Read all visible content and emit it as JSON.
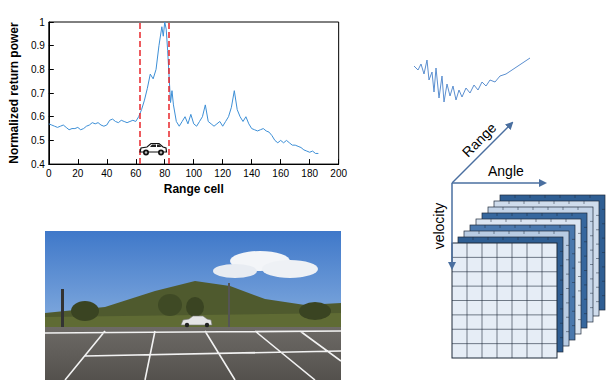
{
  "chart_data": {
    "type": "line",
    "xlabel": "Range cell",
    "ylabel": "Normalized return power",
    "x": [
      0,
      2,
      4,
      6,
      8,
      10,
      12,
      14,
      16,
      18,
      20,
      22,
      24,
      26,
      28,
      30,
      32,
      34,
      36,
      38,
      40,
      42,
      44,
      46,
      48,
      50,
      52,
      54,
      56,
      58,
      60,
      62,
      64,
      66,
      68,
      70,
      72,
      74,
      76,
      78,
      79,
      80,
      81,
      82,
      84,
      85,
      86,
      88,
      90,
      92,
      94,
      96,
      98,
      100,
      102,
      104,
      106,
      108,
      110,
      112,
      114,
      116,
      118,
      120,
      122,
      124,
      126,
      128,
      130,
      132,
      134,
      136,
      138,
      140,
      142,
      144,
      146,
      148,
      150,
      152,
      154,
      156,
      158,
      160,
      162,
      164,
      166,
      168,
      170,
      172,
      174,
      176,
      178,
      180,
      182,
      184,
      186
    ],
    "values": [
      0.57,
      0.565,
      0.56,
      0.555,
      0.56,
      0.565,
      0.555,
      0.545,
      0.55,
      0.55,
      0.555,
      0.545,
      0.55,
      0.56,
      0.565,
      0.575,
      0.57,
      0.575,
      0.565,
      0.56,
      0.565,
      0.585,
      0.59,
      0.58,
      0.575,
      0.585,
      0.58,
      0.575,
      0.58,
      0.585,
      0.58,
      0.6,
      0.63,
      0.67,
      0.72,
      0.78,
      0.76,
      0.8,
      0.9,
      0.98,
      0.94,
      1.0,
      0.97,
      0.88,
      0.66,
      0.71,
      0.65,
      0.58,
      0.56,
      0.58,
      0.6,
      0.57,
      0.61,
      0.57,
      0.56,
      0.58,
      0.6,
      0.65,
      0.58,
      0.57,
      0.56,
      0.57,
      0.58,
      0.56,
      0.58,
      0.6,
      0.64,
      0.71,
      0.63,
      0.6,
      0.58,
      0.6,
      0.57,
      0.55,
      0.545,
      0.54,
      0.545,
      0.55,
      0.54,
      0.535,
      0.52,
      0.5,
      0.49,
      0.5,
      0.49,
      0.5,
      0.49,
      0.48,
      0.48,
      0.475,
      0.47,
      0.46,
      0.455,
      0.45,
      0.455,
      0.445,
      0.445
    ],
    "color": "#3d8fd6",
    "xlim": [
      0,
      200
    ],
    "xticks": [
      0,
      20,
      40,
      60,
      80,
      100,
      120,
      140,
      160,
      180,
      200
    ],
    "ylim": [
      0.4,
      1
    ],
    "yticks": [
      0.4,
      0.5,
      0.6,
      0.7,
      0.8,
      0.9,
      1
    ],
    "grid": false,
    "vlines": {
      "x": [
        63,
        83
      ],
      "color": "#e8262b",
      "line_style": "dashed"
    }
  },
  "diagram": {
    "axes": [
      "Range",
      "Angle",
      "velocity"
    ]
  }
}
